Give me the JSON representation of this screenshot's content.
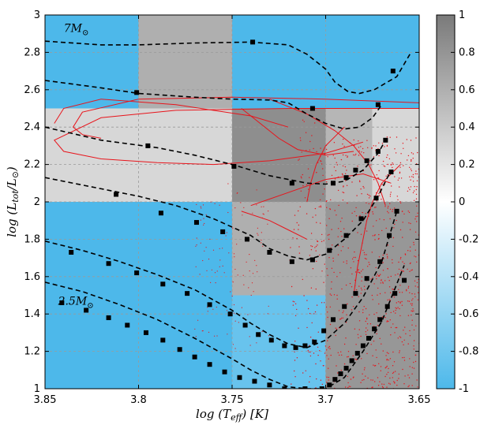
{
  "chart_data": {
    "type": "heatmap",
    "xlabel": "log (T",
    "xlabel_sub": "eff",
    "xlabel_unit": ") [K]",
    "ylabel": "log (L",
    "ylabel_sub": "tot",
    "ylabel_mid": "/L",
    "ylabel_sub2": "⊙",
    "ylabel_end": ")",
    "xlim": [
      3.85,
      3.65
    ],
    "ylim": [
      1,
      3
    ],
    "x_reversed": true,
    "x_ticks": [
      "3.85",
      "3.8",
      "3.75",
      "3.7",
      "3.65"
    ],
    "x_tick_values": [
      3.85,
      3.8,
      3.75,
      3.7,
      3.65
    ],
    "y_ticks": [
      "1",
      "1.2",
      "1.4",
      "1.6",
      "1.8",
      "2",
      "2.2",
      "2.4",
      "2.6",
      "2.8",
      "3"
    ],
    "y_tick_values": [
      1,
      1.2,
      1.4,
      1.6,
      1.8,
      2,
      2.2,
      2.4,
      2.6,
      2.8,
      3
    ],
    "colorbar": {
      "range": [
        -1,
        1
      ],
      "ticks": [
        "1",
        "0.8",
        "0.6",
        "0.4",
        "0.2",
        "0",
        "-0.2",
        "-0.4",
        "-0.6",
        "-0.8",
        "-1"
      ],
      "tick_values": [
        1,
        0.8,
        0.6,
        0.4,
        0.2,
        0,
        -0.2,
        -0.4,
        -0.6,
        -0.8,
        -1
      ],
      "low_color": "#4db8ea",
      "mid_color": "#ffffff",
      "high_color": "#7a7a7a"
    },
    "cells": [
      {
        "x0": 3.85,
        "x1": 3.8,
        "y0": 2.5,
        "y1": 3.0,
        "value": -1.0
      },
      {
        "x0": 3.8,
        "x1": 3.75,
        "y0": 2.5,
        "y1": 3.0,
        "value": 0.6
      },
      {
        "x0": 3.75,
        "x1": 3.65,
        "y0": 2.5,
        "y1": 3.0,
        "value": -1.0
      },
      {
        "x0": 3.85,
        "x1": 3.75,
        "y0": 2.0,
        "y1": 2.5,
        "value": 0.3
      },
      {
        "x0": 3.75,
        "x1": 3.7,
        "y0": 2.0,
        "y1": 2.5,
        "value": 0.85
      },
      {
        "x0": 3.7,
        "x1": 3.675,
        "y0": 2.0,
        "y1": 2.5,
        "value": 0.55
      },
      {
        "x0": 3.675,
        "x1": 3.65,
        "y0": 2.0,
        "y1": 2.5,
        "value": 0.3
      },
      {
        "x0": 3.85,
        "x1": 3.75,
        "y0": 1.0,
        "y1": 2.0,
        "value": -1.0
      },
      {
        "x0": 3.75,
        "x1": 3.7,
        "y0": 1.5,
        "y1": 2.0,
        "value": 0.6
      },
      {
        "x0": 3.75,
        "x1": 3.7,
        "y0": 1.0,
        "y1": 1.5,
        "value": -0.85
      },
      {
        "x0": 3.7,
        "x1": 3.65,
        "y0": 1.0,
        "y1": 2.0,
        "value": 0.78
      }
    ],
    "tracks": [
      {
        "label": "7M",
        "label_sub": "⊙",
        "label_at": [
          3.84,
          2.91
        ],
        "line": [
          [
            3.85,
            2.86
          ],
          [
            3.82,
            2.84
          ],
          [
            3.8,
            2.84
          ],
          [
            3.77,
            2.85
          ],
          [
            3.74,
            2.855
          ],
          [
            3.72,
            2.84
          ],
          [
            3.71,
            2.79
          ],
          [
            3.7,
            2.71
          ],
          [
            3.695,
            2.64
          ],
          [
            3.688,
            2.59
          ],
          [
            3.682,
            2.58
          ],
          [
            3.674,
            2.6
          ],
          [
            3.662,
            2.67
          ],
          [
            3.655,
            2.79
          ]
        ],
        "markers": [
          [
            3.739,
            2.855
          ],
          [
            3.664,
            2.7
          ]
        ]
      },
      {
        "line": [
          [
            3.85,
            2.65
          ],
          [
            3.82,
            2.61
          ],
          [
            3.8,
            2.58
          ],
          [
            3.77,
            2.56
          ],
          [
            3.75,
            2.55
          ],
          [
            3.73,
            2.545
          ],
          [
            3.72,
            2.53
          ],
          [
            3.71,
            2.47
          ],
          [
            3.7,
            2.42
          ],
          [
            3.69,
            2.39
          ],
          [
            3.682,
            2.4
          ],
          [
            3.675,
            2.45
          ],
          [
            3.67,
            2.52
          ]
        ],
        "markers": [
          [
            3.801,
            2.585
          ],
          [
            3.707,
            2.5
          ],
          [
            3.672,
            2.52
          ]
        ]
      },
      {
        "line": [
          [
            3.85,
            2.4
          ],
          [
            3.82,
            2.33
          ],
          [
            3.79,
            2.29
          ],
          [
            3.77,
            2.25
          ],
          [
            3.75,
            2.2
          ],
          [
            3.73,
            2.14
          ],
          [
            3.71,
            2.1
          ],
          [
            3.7,
            2.095
          ],
          [
            3.69,
            2.11
          ],
          [
            3.68,
            2.17
          ],
          [
            3.672,
            2.26
          ],
          [
            3.668,
            2.33
          ]
        ],
        "markers": [
          [
            3.795,
            2.3
          ],
          [
            3.749,
            2.19
          ],
          [
            3.718,
            2.1
          ],
          [
            3.696,
            2.1
          ],
          [
            3.689,
            2.13
          ],
          [
            3.684,
            2.17
          ],
          [
            3.678,
            2.22
          ],
          [
            3.672,
            2.27
          ],
          [
            3.668,
            2.33
          ]
        ]
      },
      {
        "line": [
          [
            3.85,
            2.13
          ],
          [
            3.82,
            2.07
          ],
          [
            3.8,
            2.03
          ],
          [
            3.78,
            1.98
          ],
          [
            3.76,
            1.91
          ],
          [
            3.74,
            1.82
          ],
          [
            3.73,
            1.75
          ],
          [
            3.72,
            1.71
          ],
          [
            3.71,
            1.69
          ],
          [
            3.7,
            1.72
          ],
          [
            3.69,
            1.8
          ],
          [
            3.68,
            1.9
          ],
          [
            3.672,
            2.03
          ],
          [
            3.665,
            2.17
          ]
        ],
        "markers": [
          [
            3.812,
            2.04
          ],
          [
            3.788,
            1.94
          ],
          [
            3.769,
            1.89
          ],
          [
            3.755,
            1.84
          ],
          [
            3.742,
            1.8
          ],
          [
            3.73,
            1.73
          ],
          [
            3.718,
            1.68
          ],
          [
            3.707,
            1.69
          ],
          [
            3.698,
            1.74
          ],
          [
            3.689,
            1.82
          ],
          [
            3.681,
            1.91
          ],
          [
            3.673,
            2.02
          ],
          [
            3.665,
            2.16
          ]
        ],
        "dense": true
      },
      {
        "line": [
          [
            3.85,
            1.79
          ],
          [
            3.83,
            1.74
          ],
          [
            3.81,
            1.68
          ],
          [
            3.79,
            1.61
          ],
          [
            3.77,
            1.53
          ],
          [
            3.75,
            1.42
          ],
          [
            3.74,
            1.35
          ],
          [
            3.73,
            1.29
          ],
          [
            3.72,
            1.24
          ],
          [
            3.71,
            1.22
          ],
          [
            3.7,
            1.26
          ],
          [
            3.69,
            1.35
          ],
          [
            3.68,
            1.49
          ],
          [
            3.67,
            1.68
          ],
          [
            3.662,
            1.95
          ]
        ],
        "markers": [
          [
            3.836,
            1.73
          ],
          [
            3.816,
            1.67
          ],
          [
            3.801,
            1.62
          ],
          [
            3.787,
            1.56
          ],
          [
            3.774,
            1.51
          ],
          [
            3.762,
            1.45
          ],
          [
            3.751,
            1.4
          ],
          [
            3.743,
            1.34
          ],
          [
            3.736,
            1.29
          ],
          [
            3.729,
            1.26
          ],
          [
            3.722,
            1.23
          ],
          [
            3.716,
            1.22
          ],
          [
            3.711,
            1.23
          ],
          [
            3.706,
            1.25
          ],
          [
            3.701,
            1.31
          ],
          [
            3.696,
            1.37
          ],
          [
            3.69,
            1.44
          ],
          [
            3.684,
            1.51
          ],
          [
            3.678,
            1.59
          ],
          [
            3.671,
            1.68
          ],
          [
            3.666,
            1.82
          ],
          [
            3.662,
            1.95
          ]
        ]
      },
      {
        "label": "2.5M",
        "label_sub": "⊙",
        "label_at": [
          3.843,
          1.45
        ],
        "line": [
          [
            3.85,
            1.57
          ],
          [
            3.83,
            1.52
          ],
          [
            3.81,
            1.45
          ],
          [
            3.79,
            1.37
          ],
          [
            3.77,
            1.27
          ],
          [
            3.75,
            1.16
          ],
          [
            3.74,
            1.1
          ],
          [
            3.73,
            1.05
          ],
          [
            3.72,
            1.01
          ],
          [
            3.71,
            1.0
          ],
          [
            3.7,
            1.0
          ],
          [
            3.69,
            1.06
          ],
          [
            3.68,
            1.2
          ],
          [
            3.67,
            1.36
          ],
          [
            3.658,
            1.66
          ]
        ],
        "markers": [
          [
            3.866,
            1.53
          ],
          [
            3.856,
            1.49
          ],
          [
            3.841,
            1.46
          ],
          [
            3.828,
            1.42
          ],
          [
            3.816,
            1.38
          ],
          [
            3.806,
            1.34
          ],
          [
            3.796,
            1.3
          ],
          [
            3.787,
            1.26
          ],
          [
            3.778,
            1.21
          ],
          [
            3.77,
            1.17
          ],
          [
            3.762,
            1.13
          ],
          [
            3.754,
            1.09
          ],
          [
            3.746,
            1.06
          ],
          [
            3.738,
            1.04
          ],
          [
            3.73,
            1.02
          ],
          [
            3.722,
            1.0
          ],
          [
            3.711,
            1.0
          ],
          [
            3.702,
            1.0
          ],
          [
            3.698,
            1.02
          ],
          [
            3.695,
            1.05
          ],
          [
            3.692,
            1.08
          ],
          [
            3.689,
            1.11
          ],
          [
            3.686,
            1.15
          ],
          [
            3.683,
            1.19
          ],
          [
            3.68,
            1.23
          ],
          [
            3.677,
            1.27
          ],
          [
            3.674,
            1.32
          ],
          [
            3.671,
            1.37
          ],
          [
            3.667,
            1.44
          ],
          [
            3.663,
            1.51
          ],
          [
            3.658,
            1.58
          ]
        ]
      }
    ]
  }
}
